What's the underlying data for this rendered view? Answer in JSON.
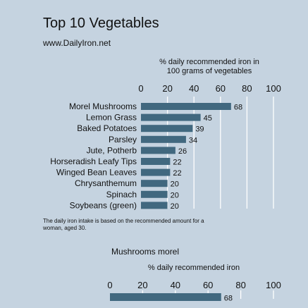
{
  "header": {
    "title": "Top 10 Vegetables",
    "subtitle": "www.DailyIron.net"
  },
  "note": "The daily iron intake is based on the recommended amount for a woman, aged 30.",
  "chart_data": [
    {
      "type": "bar",
      "orientation": "horizontal",
      "xlabel": "% daily recommended iron in 100 grams of vegetables",
      "xlim": [
        0,
        100
      ],
      "xticks": [
        0,
        20,
        40,
        60,
        80,
        100
      ],
      "grid": true,
      "bar_color": "#41687f",
      "categories": [
        "Morel Mushrooms",
        "Lemon Grass",
        "Baked Potatoes",
        "Parsley",
        "Jute, Potherb",
        "Horseradish Leafy Tips",
        "Winged Bean Leaves",
        "Chrysanthemum",
        "Spinach",
        "Soybeans (green)"
      ],
      "values": [
        68,
        45,
        39,
        34,
        26,
        22,
        22,
        20,
        20,
        20
      ]
    },
    {
      "type": "bar",
      "orientation": "horizontal",
      "title": "Mushrooms morel",
      "xlabel": "% daily recommended iron",
      "xlim": [
        0,
        100
      ],
      "xticks": [
        0,
        20,
        40,
        60,
        80,
        100
      ],
      "grid": true,
      "bar_color": "#41687f",
      "categories": [
        ""
      ],
      "values": [
        68
      ]
    }
  ]
}
